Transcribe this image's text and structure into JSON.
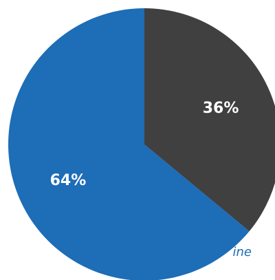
{
  "chart_data": {
    "type": "pie",
    "title": "",
    "start_angle_deg": 0,
    "direction": "clockwise",
    "slices": [
      {
        "value": 36,
        "label": "36%",
        "color": "#404040"
      },
      {
        "value": 64,
        "label": "64%",
        "color": "#1d6db7"
      }
    ],
    "annotations": [
      {
        "text": "ine",
        "color": "#1d6db7"
      }
    ]
  }
}
